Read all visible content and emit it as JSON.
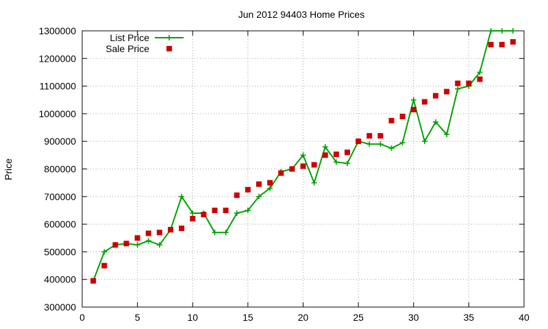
{
  "chart_data": {
    "type": "line",
    "title": "Jun 2012 94403 Home Prices",
    "xlabel": "",
    "ylabel": "Price",
    "xlim": [
      0,
      40
    ],
    "ylim": [
      300000,
      1300000
    ],
    "x_ticks": [
      "0",
      "5",
      "10",
      "15",
      "20",
      "25",
      "30",
      "35",
      "40"
    ],
    "y_ticks": [
      "300000",
      "400000",
      "500000",
      "600000",
      "700000",
      "800000",
      "900000",
      "1000000",
      "1100000",
      "1200000",
      "1300000"
    ],
    "grid": true,
    "legend_position": "top-left",
    "series": [
      {
        "name": "List Price",
        "style": "line-with-plus-markers",
        "color": "#00a000",
        "x": [
          1,
          2,
          3,
          4,
          5,
          6,
          7,
          8,
          9,
          10,
          11,
          12,
          13,
          14,
          15,
          16,
          17,
          18,
          19,
          20,
          21,
          22,
          23,
          24,
          25,
          26,
          27,
          28,
          29,
          30,
          31,
          32,
          33,
          34,
          35,
          36,
          37,
          38,
          39
        ],
        "values": [
          395000,
          500000,
          525000,
          530000,
          525000,
          540000,
          525000,
          580000,
          700000,
          640000,
          640000,
          570000,
          570000,
          640000,
          650000,
          700000,
          730000,
          790000,
          800000,
          850000,
          750000,
          880000,
          825000,
          820000,
          900000,
          890000,
          890000,
          875000,
          895000,
          1050000,
          900000,
          970000,
          925000,
          1090000,
          1100000,
          1150000,
          1300000,
          1300000,
          1300000
        ]
      },
      {
        "name": "Sale Price",
        "style": "square-markers",
        "color": "#cc0000",
        "x": [
          1,
          2,
          3,
          4,
          5,
          6,
          7,
          8,
          9,
          10,
          11,
          12,
          13,
          14,
          15,
          16,
          17,
          18,
          19,
          20,
          21,
          22,
          23,
          24,
          25,
          26,
          27,
          28,
          29,
          30,
          31,
          32,
          33,
          34,
          35,
          36,
          37,
          38,
          39
        ],
        "values": [
          395000,
          450000,
          525000,
          530000,
          550000,
          567000,
          570000,
          580000,
          585000,
          620000,
          635000,
          650000,
          650000,
          705000,
          725000,
          745000,
          750000,
          785000,
          800000,
          810000,
          815000,
          850000,
          853000,
          860000,
          900000,
          920000,
          920000,
          975000,
          990000,
          1015000,
          1043000,
          1065000,
          1080000,
          1110000,
          1110000,
          1125000,
          1250000,
          1250000,
          1260000
        ]
      }
    ]
  }
}
